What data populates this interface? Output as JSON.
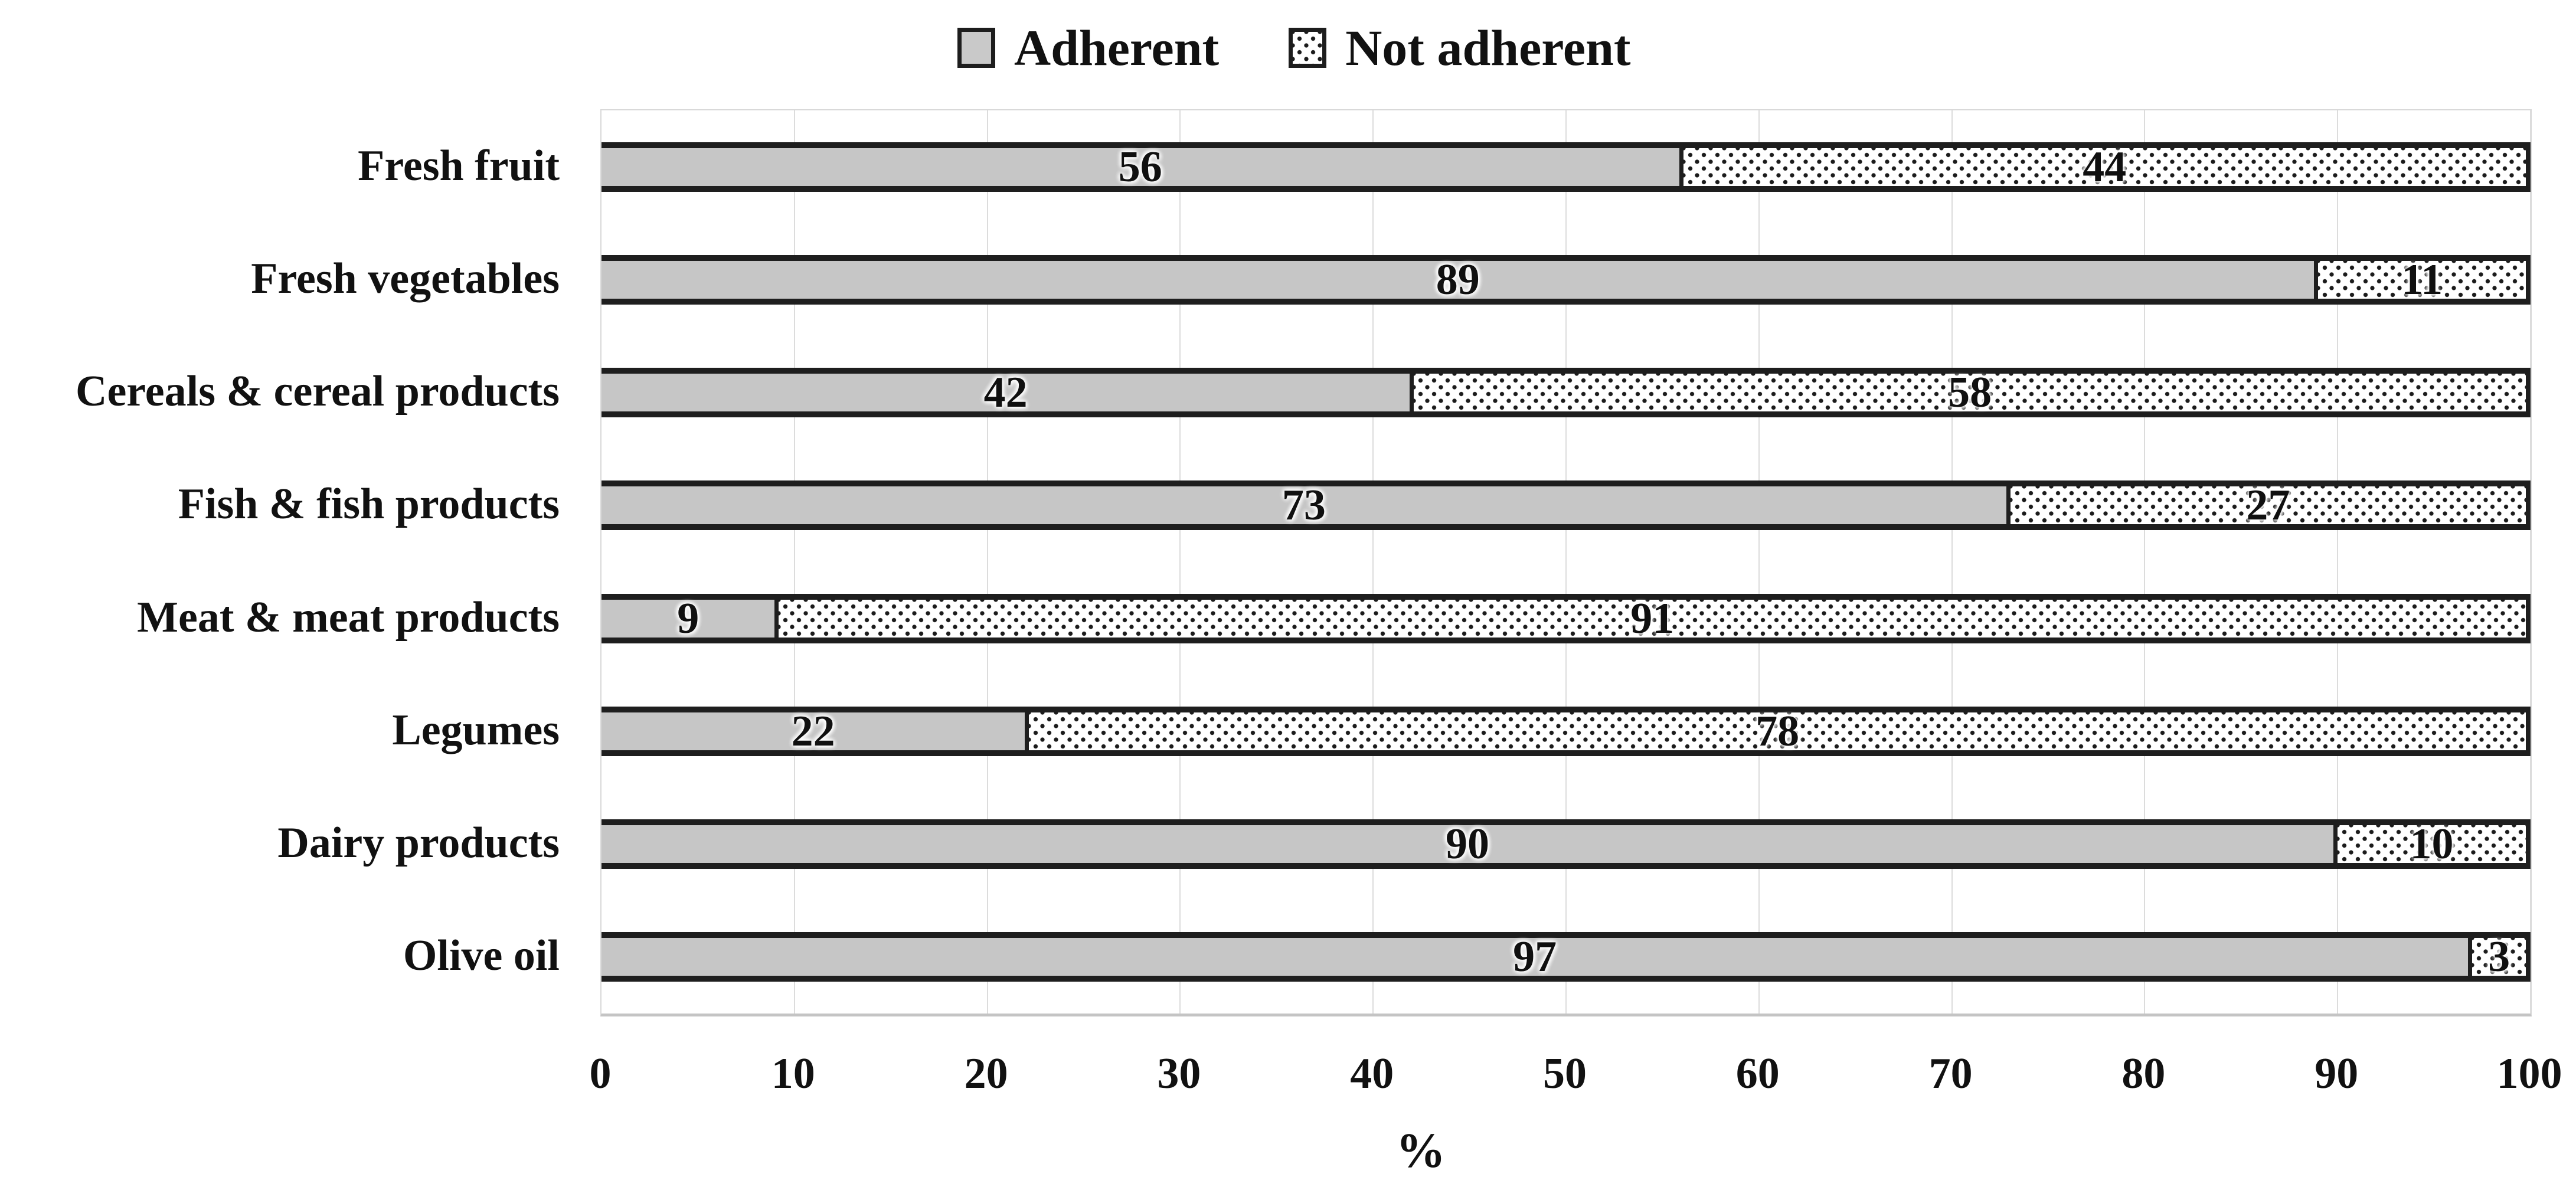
{
  "legend": {
    "items": [
      {
        "label": "Adherent"
      },
      {
        "label": "Not adherent"
      }
    ]
  },
  "chart_data": {
    "type": "bar",
    "orientation": "horizontal",
    "stacked": true,
    "categories": [
      "Fresh fruit",
      "Fresh vegetables",
      "Cereals & cereal products",
      "Fish & fish products",
      "Meat & meat products",
      "Legumes",
      "Dairy products",
      "Olive oil"
    ],
    "series": [
      {
        "name": "Adherent",
        "values": [
          56,
          89,
          42,
          73,
          9,
          22,
          90,
          97
        ]
      },
      {
        "name": "Not adherent",
        "values": [
          44,
          11,
          58,
          27,
          91,
          78,
          10,
          3
        ]
      }
    ],
    "xlabel": "%",
    "xlim": [
      0,
      100
    ],
    "x_ticks": [
      0,
      10,
      20,
      30,
      40,
      50,
      60,
      70,
      80,
      90,
      100
    ],
    "grid": "vertical",
    "legend_position": "top-center",
    "colors": {
      "adherent_fill": "#c6c6c6",
      "not_adherent_fill": "white-with-black-dots",
      "bar_border": "#1e1e1e",
      "gridline": "#dcdcdc",
      "text": "#111111"
    }
  }
}
